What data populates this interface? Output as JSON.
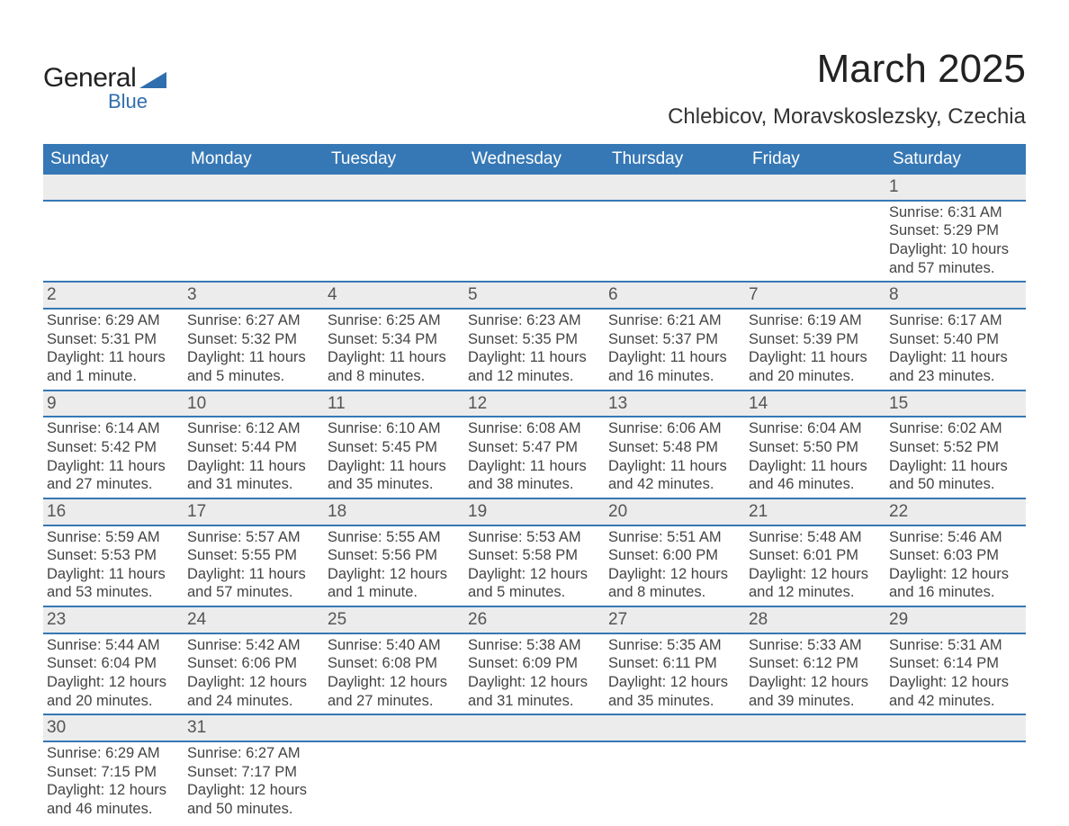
{
  "logo": {
    "line1": "General",
    "line2": "Blue",
    "accent_color": "#2f6fae"
  },
  "title": "March 2025",
  "location": "Chlebicov, Moravskoslezsky, Czechia",
  "header_bg": "#3678b5",
  "header_fg": "#ffffff",
  "daynum_bg": "#ececec",
  "row_border": "#3678b5",
  "text_color": "#444444",
  "days_of_week": [
    "Sunday",
    "Monday",
    "Tuesday",
    "Wednesday",
    "Thursday",
    "Friday",
    "Saturday"
  ],
  "weeks": [
    [
      null,
      null,
      null,
      null,
      null,
      null,
      {
        "n": "1",
        "sunrise": "6:31 AM",
        "sunset": "5:29 PM",
        "daylight": "10 hours and 57 minutes."
      }
    ],
    [
      {
        "n": "2",
        "sunrise": "6:29 AM",
        "sunset": "5:31 PM",
        "daylight": "11 hours and 1 minute."
      },
      {
        "n": "3",
        "sunrise": "6:27 AM",
        "sunset": "5:32 PM",
        "daylight": "11 hours and 5 minutes."
      },
      {
        "n": "4",
        "sunrise": "6:25 AM",
        "sunset": "5:34 PM",
        "daylight": "11 hours and 8 minutes."
      },
      {
        "n": "5",
        "sunrise": "6:23 AM",
        "sunset": "5:35 PM",
        "daylight": "11 hours and 12 minutes."
      },
      {
        "n": "6",
        "sunrise": "6:21 AM",
        "sunset": "5:37 PM",
        "daylight": "11 hours and 16 minutes."
      },
      {
        "n": "7",
        "sunrise": "6:19 AM",
        "sunset": "5:39 PM",
        "daylight": "11 hours and 20 minutes."
      },
      {
        "n": "8",
        "sunrise": "6:17 AM",
        "sunset": "5:40 PM",
        "daylight": "11 hours and 23 minutes."
      }
    ],
    [
      {
        "n": "9",
        "sunrise": "6:14 AM",
        "sunset": "5:42 PM",
        "daylight": "11 hours and 27 minutes."
      },
      {
        "n": "10",
        "sunrise": "6:12 AM",
        "sunset": "5:44 PM",
        "daylight": "11 hours and 31 minutes."
      },
      {
        "n": "11",
        "sunrise": "6:10 AM",
        "sunset": "5:45 PM",
        "daylight": "11 hours and 35 minutes."
      },
      {
        "n": "12",
        "sunrise": "6:08 AM",
        "sunset": "5:47 PM",
        "daylight": "11 hours and 38 minutes."
      },
      {
        "n": "13",
        "sunrise": "6:06 AM",
        "sunset": "5:48 PM",
        "daylight": "11 hours and 42 minutes."
      },
      {
        "n": "14",
        "sunrise": "6:04 AM",
        "sunset": "5:50 PM",
        "daylight": "11 hours and 46 minutes."
      },
      {
        "n": "15",
        "sunrise": "6:02 AM",
        "sunset": "5:52 PM",
        "daylight": "11 hours and 50 minutes."
      }
    ],
    [
      {
        "n": "16",
        "sunrise": "5:59 AM",
        "sunset": "5:53 PM",
        "daylight": "11 hours and 53 minutes."
      },
      {
        "n": "17",
        "sunrise": "5:57 AM",
        "sunset": "5:55 PM",
        "daylight": "11 hours and 57 minutes."
      },
      {
        "n": "18",
        "sunrise": "5:55 AM",
        "sunset": "5:56 PM",
        "daylight": "12 hours and 1 minute."
      },
      {
        "n": "19",
        "sunrise": "5:53 AM",
        "sunset": "5:58 PM",
        "daylight": "12 hours and 5 minutes."
      },
      {
        "n": "20",
        "sunrise": "5:51 AM",
        "sunset": "6:00 PM",
        "daylight": "12 hours and 8 minutes."
      },
      {
        "n": "21",
        "sunrise": "5:48 AM",
        "sunset": "6:01 PM",
        "daylight": "12 hours and 12 minutes."
      },
      {
        "n": "22",
        "sunrise": "5:46 AM",
        "sunset": "6:03 PM",
        "daylight": "12 hours and 16 minutes."
      }
    ],
    [
      {
        "n": "23",
        "sunrise": "5:44 AM",
        "sunset": "6:04 PM",
        "daylight": "12 hours and 20 minutes."
      },
      {
        "n": "24",
        "sunrise": "5:42 AM",
        "sunset": "6:06 PM",
        "daylight": "12 hours and 24 minutes."
      },
      {
        "n": "25",
        "sunrise": "5:40 AM",
        "sunset": "6:08 PM",
        "daylight": "12 hours and 27 minutes."
      },
      {
        "n": "26",
        "sunrise": "5:38 AM",
        "sunset": "6:09 PM",
        "daylight": "12 hours and 31 minutes."
      },
      {
        "n": "27",
        "sunrise": "5:35 AM",
        "sunset": "6:11 PM",
        "daylight": "12 hours and 35 minutes."
      },
      {
        "n": "28",
        "sunrise": "5:33 AM",
        "sunset": "6:12 PM",
        "daylight": "12 hours and 39 minutes."
      },
      {
        "n": "29",
        "sunrise": "5:31 AM",
        "sunset": "6:14 PM",
        "daylight": "12 hours and 42 minutes."
      }
    ],
    [
      {
        "n": "30",
        "sunrise": "6:29 AM",
        "sunset": "7:15 PM",
        "daylight": "12 hours and 46 minutes."
      },
      {
        "n": "31",
        "sunrise": "6:27 AM",
        "sunset": "7:17 PM",
        "daylight": "12 hours and 50 minutes."
      },
      null,
      null,
      null,
      null,
      null
    ]
  ],
  "labels": {
    "sunrise": "Sunrise: ",
    "sunset": "Sunset: ",
    "daylight": "Daylight: "
  }
}
